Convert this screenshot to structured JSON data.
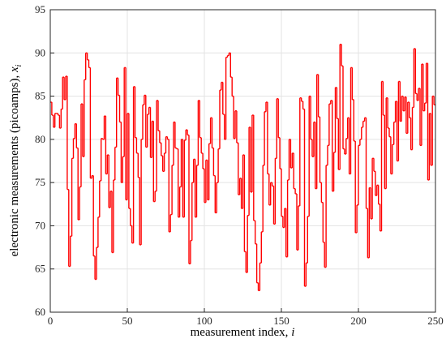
{
  "chart_data": {
    "type": "stairs",
    "xlabel": "measurement index,",
    "xlabel_var": "i",
    "ylabel": "electronic measurements (picoamps),",
    "ylabel_var": "x",
    "ylabel_sub": "i",
    "color": "#ff0000",
    "grid": true,
    "xlim": [
      0,
      250
    ],
    "xticks": [
      0,
      50,
      100,
      150,
      200,
      250
    ],
    "ylim": [
      60,
      95
    ],
    "yticks": [
      60,
      65,
      70,
      75,
      80,
      85,
      90,
      95
    ],
    "x": [
      0,
      1,
      2,
      3,
      4,
      5,
      6,
      7,
      8,
      9,
      10,
      11,
      12,
      13,
      14,
      15,
      16,
      17,
      18,
      19,
      20,
      21,
      22,
      23,
      24,
      25,
      26,
      27,
      28,
      29,
      30,
      31,
      32,
      33,
      34,
      35,
      36,
      37,
      38,
      39,
      40,
      41,
      42,
      43,
      44,
      45,
      46,
      47,
      48,
      49,
      50,
      51,
      52,
      53,
      54,
      55,
      56,
      57,
      58,
      59,
      60,
      61,
      62,
      63,
      64,
      65,
      66,
      67,
      68,
      69,
      70,
      71,
      72,
      73,
      74,
      75,
      76,
      77,
      78,
      79,
      80,
      81,
      82,
      83,
      84,
      85,
      86,
      87,
      88,
      89,
      90,
      91,
      92,
      93,
      94,
      95,
      96,
      97,
      98,
      99,
      100,
      101,
      102,
      103,
      104,
      105,
      106,
      107,
      108,
      109,
      110,
      111,
      112,
      113,
      114,
      115,
      116,
      117,
      118,
      119,
      120,
      121,
      122,
      123,
      124,
      125,
      126,
      127,
      128,
      129,
      130,
      131,
      132,
      133,
      134,
      135,
      136,
      137,
      138,
      139,
      140,
      141,
      142,
      143,
      144,
      145,
      146,
      147,
      148,
      149,
      150,
      151,
      152,
      153,
      154,
      155,
      156,
      157,
      158,
      159,
      160,
      161,
      162,
      163,
      164,
      165,
      166,
      167,
      168,
      169,
      170,
      171,
      172,
      173,
      174,
      175,
      176,
      177,
      178,
      179,
      180,
      181,
      182,
      183,
      184,
      185,
      186,
      187,
      188,
      189,
      190,
      191,
      192,
      193,
      194,
      195,
      196,
      197,
      198,
      199,
      200,
      201,
      202,
      203,
      204,
      205,
      206,
      207,
      208,
      209,
      210,
      211,
      212,
      213,
      214,
      215,
      216,
      217,
      218,
      219,
      220,
      221,
      222,
      223,
      224,
      225,
      226,
      227,
      228,
      229,
      230,
      231,
      232,
      233,
      234,
      235,
      236,
      237,
      238,
      239,
      240,
      241,
      242,
      243,
      244,
      245,
      246,
      247,
      248,
      249
    ],
    "values": [
      84.3,
      82.8,
      81.4,
      83.0,
      83.0,
      82.8,
      81.3,
      83.5,
      87.2,
      84.6,
      87.3,
      74.2,
      65.3,
      68.8,
      77.8,
      80.1,
      81.8,
      79.0,
      70.7,
      74.5,
      84.1,
      78.0,
      86.9,
      90.0,
      89.2,
      88.3,
      75.5,
      75.8,
      66.5,
      63.8,
      67.5,
      71.0,
      75.2,
      80.1,
      80.0,
      82.7,
      76.0,
      78.2,
      72.1,
      74.0,
      66.9,
      75.3,
      79.1,
      87.1,
      85.1,
      82.0,
      75.0,
      78.0,
      88.3,
      73.0,
      83.0,
      72.0,
      70.0,
      68.0,
      86.1,
      80.2,
      78.4,
      75.6,
      67.8,
      80.0,
      84.0,
      85.1,
      79.1,
      82.9,
      83.7,
      77.9,
      82.1,
      72.8,
      74.0,
      84.5,
      81.0,
      79.6,
      78.1,
      76.3,
      78.4,
      80.3,
      80.0,
      69.3,
      71.3,
      77.0,
      82.0,
      79.0,
      78.9,
      71.0,
      74.5,
      80.0,
      71.0,
      79.9,
      81.1,
      80.5,
      65.6,
      68.3,
      75.0,
      77.7,
      71.0,
      77.0,
      84.5,
      80.2,
      78.4,
      76.6,
      72.7,
      77.6,
      73.0,
      79.5,
      82.5,
      79.0,
      75.8,
      71.5,
      75.0,
      78.9,
      85.7,
      86.6,
      82.9,
      80.0,
      89.5,
      89.7,
      90.0,
      87.2,
      85.0,
      80.1,
      83.3,
      79.6,
      73.6,
      75.5,
      72.0,
      78.2,
      67.0,
      64.6,
      71.2,
      81.4,
      73.9,
      82.8,
      70.6,
      67.9,
      63.4,
      62.5,
      65.7,
      69.3,
      77.0,
      83.2,
      84.3,
      76.0,
      72.4,
      75.0,
      74.6,
      70.2,
      77.8,
      84.7,
      80.2,
      76.6,
      71.1,
      69.8,
      72.0,
      66.4,
      75.3,
      80.0,
      76.7,
      78.4,
      74.3,
      73.7,
      67.2,
      72.3,
      84.8,
      84.4,
      83.5,
      63.0,
      65.7,
      71.1,
      85.0,
      80.0,
      78.0,
      82.0,
      74.3,
      87.5,
      82.6,
      75.0,
      72.7,
      68.1,
      65.2,
      77.0,
      79.3,
      84.1,
      84.5,
      74.0,
      78.5,
      86.0,
      82.4,
      76.5,
      91.0,
      88.5,
      78.9,
      78.3,
      80.1,
      82.5,
      76.0,
      88.3,
      84.6,
      79.8,
      69.2,
      72.4,
      79.3,
      80.0,
      81.4,
      82.1,
      82.5,
      72.0,
      66.3,
      74.4,
      70.8,
      77.8,
      76.3,
      73.5,
      74.7,
      72.5,
      69.4,
      86.7,
      82.8,
      74.3,
      84.8,
      81.3,
      80.3,
      76.0,
      79.4,
      82.0,
      84.4,
      77.5,
      86.7,
      82.1,
      85.0,
      83.3,
      84.9,
      80.7,
      84.3,
      82.5,
      78.8,
      83.7,
      90.5,
      85.3,
      84.5,
      85.9,
      79.3,
      88.7,
      83.3,
      84.2,
      88.8,
      75.3,
      83.0,
      77.0,
      85.0,
      84.0
    ]
  }
}
